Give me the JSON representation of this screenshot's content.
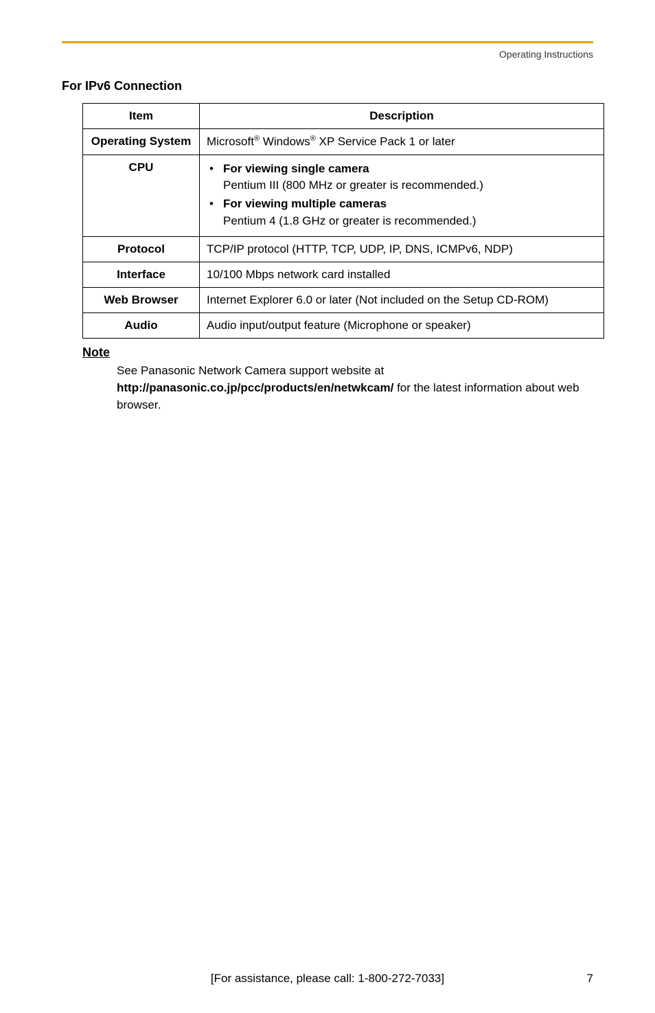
{
  "header": {
    "label": "Operating Instructions"
  },
  "section": {
    "title": "For IPv6 Connection"
  },
  "table": {
    "head_item": "Item",
    "head_desc": "Description",
    "rows": {
      "os": {
        "label": "Operating System",
        "desc_html": "Microsoft<sup>®</sup> Windows<sup>®</sup> XP Service Pack 1 or later"
      },
      "cpu": {
        "label": "CPU",
        "b1_title": "For viewing single camera",
        "b1_body": "Pentium III (800 MHz or greater is recommended.)",
        "b2_title": "For viewing multiple cameras",
        "b2_body": "Pentium 4 (1.8 GHz or greater is recommended.)"
      },
      "protocol": {
        "label": "Protocol",
        "desc": "TCP/IP protocol (HTTP, TCP, UDP, IP, DNS, ICMPv6, NDP)"
      },
      "interface": {
        "label": "Interface",
        "desc": "10/100 Mbps network card installed"
      },
      "browser": {
        "label": "Web Browser",
        "desc": "Internet Explorer 6.0 or later (Not included on the Setup CD-ROM)"
      },
      "audio": {
        "label": "Audio",
        "desc": "Audio input/output feature (Microphone or speaker)"
      }
    }
  },
  "note": {
    "head": "Note",
    "line1": "See Panasonic Network Camera support website at",
    "url": "http://panasonic.co.jp/pcc/products/en/netwkcam/",
    "line2_tail": " for the latest information about web browser."
  },
  "footer": {
    "assist": "[For assistance, please call: 1-800-272-7033]",
    "pagenum": "7"
  }
}
